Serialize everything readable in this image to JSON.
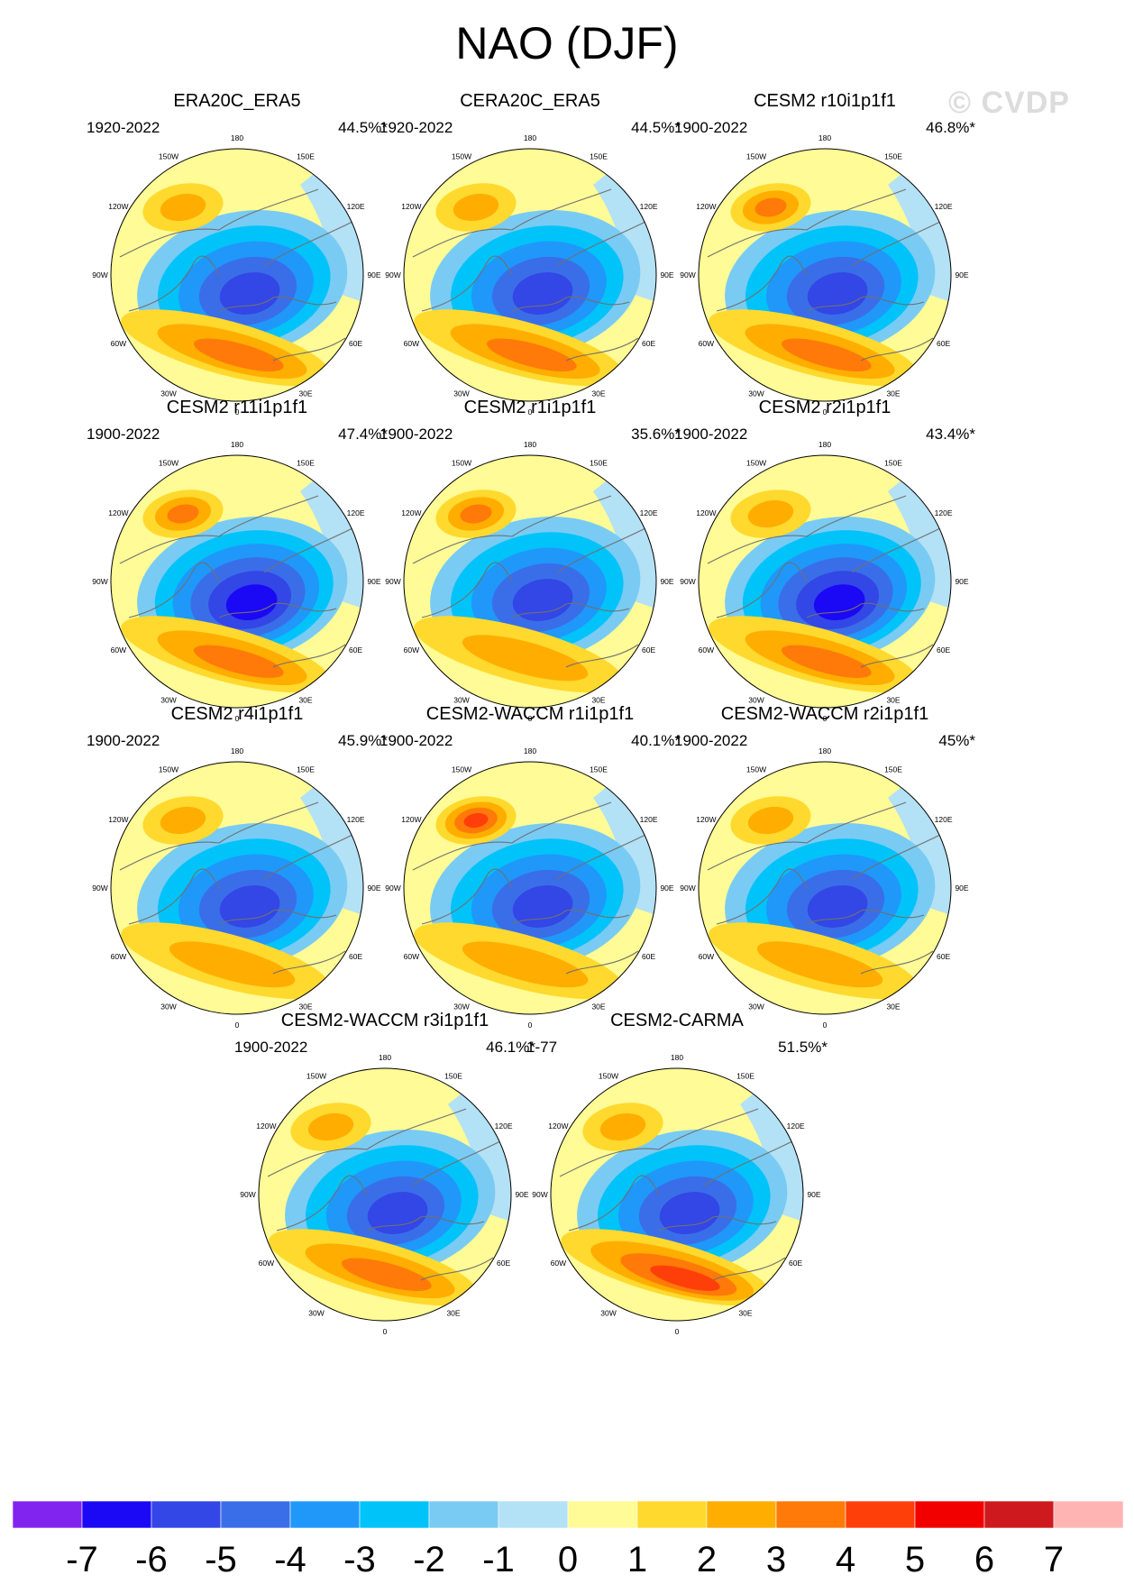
{
  "title": "NAO (DJF)",
  "watermark": "© CVDP",
  "colors": {
    "scale": [
      "#8224f0",
      "#1b08f5",
      "#3346e6",
      "#3a6ee8",
      "#1f98fa",
      "#00c3fa",
      "#79cbf3",
      "#b3e1f5",
      "#fffb96",
      "#ffd92e",
      "#ffae00",
      "#ff7a08",
      "#ff3f0a",
      "#f20000",
      "#ce1a1e",
      "#ffb4b4"
    ],
    "land_outline": "#707070"
  },
  "chart_data": {
    "type": "polar contour map panels",
    "variable": "NAO (DJF)",
    "longitude_labels": [
      "180",
      "150W",
      "150E",
      "120W",
      "120E",
      "90W",
      "90E",
      "60W",
      "60E",
      "30W",
      "30E",
      "0"
    ],
    "colorbar": {
      "levels": [
        -7,
        -6,
        -5,
        -4,
        -3,
        -2,
        -1,
        0,
        1,
        2,
        3,
        4,
        5,
        6,
        7
      ],
      "labels": [
        "-7",
        "-6",
        "-5",
        "-4",
        "-3",
        "-2",
        "-1",
        "0",
        "1",
        "2",
        "3",
        "4",
        "5",
        "6",
        "7"
      ]
    },
    "panels": [
      {
        "name": "ERA20C_ERA5",
        "period": "1920-2022",
        "variance": "44.5%*",
        "arctic_min": -5,
        "atlantic_max": 3,
        "pacific_max": 2
      },
      {
        "name": "CERA20C_ERA5",
        "period": "1920-2022",
        "variance": "44.5%*",
        "arctic_min": -5,
        "atlantic_max": 3,
        "pacific_max": 2
      },
      {
        "name": "CESM2 r10i1p1f1",
        "period": "1900-2022",
        "variance": "46.8%*",
        "arctic_min": -5,
        "atlantic_max": 3,
        "pacific_max": 3
      },
      {
        "name": "CESM2 r11i1p1f1",
        "period": "1900-2022",
        "variance": "47.4%*",
        "arctic_min": -6,
        "atlantic_max": 3,
        "pacific_max": 3
      },
      {
        "name": "CESM2 r1i1p1f1",
        "period": "1900-2022",
        "variance": "35.6%*",
        "arctic_min": -5,
        "atlantic_max": 2,
        "pacific_max": 3
      },
      {
        "name": "CESM2 r2i1p1f1",
        "period": "1900-2022",
        "variance": "43.4%*",
        "arctic_min": -6,
        "atlantic_max": 3,
        "pacific_max": 2
      },
      {
        "name": "CESM2 r4i1p1f1",
        "period": "1900-2022",
        "variance": "45.9%*",
        "arctic_min": -5,
        "atlantic_max": 2,
        "pacific_max": 2
      },
      {
        "name": "CESM2-WACCM r1i1p1f1",
        "period": "1900-2022",
        "variance": "40.1%*",
        "arctic_min": -5,
        "atlantic_max": 2,
        "pacific_max": 4
      },
      {
        "name": "CESM2-WACCM r2i1p1f1",
        "period": "1900-2022",
        "variance": "45%*",
        "arctic_min": -5,
        "atlantic_max": 2,
        "pacific_max": 2
      },
      {
        "name": "CESM2-WACCM r3i1p1f1",
        "period": "1900-2022",
        "variance": "46.1%*",
        "arctic_min": -5,
        "atlantic_max": 3,
        "pacific_max": 2
      },
      {
        "name": "CESM2-CARMA",
        "period": "1-77",
        "variance": "51.5%*",
        "arctic_min": -5,
        "atlantic_max": 4,
        "pacific_max": 2
      }
    ]
  }
}
